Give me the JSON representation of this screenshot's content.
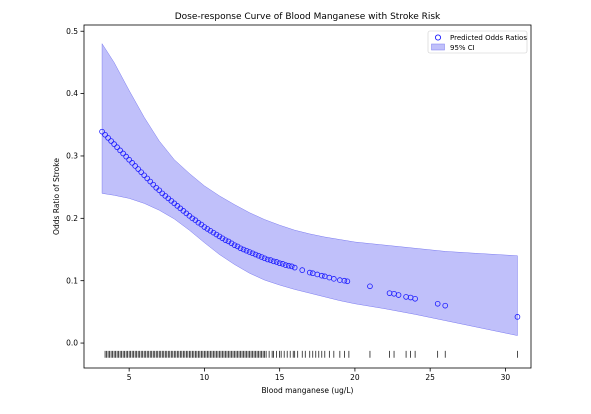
{
  "chart_data": {
    "type": "scatter",
    "title": "Dose-response Curve of Blood Manganese with Stroke Risk",
    "xlabel": "Blood manganese (ug/L)",
    "ylabel": "Odds Ratio of Stroke",
    "xlim": [
      2.0,
      31.7
    ],
    "ylim": [
      -0.04,
      0.51
    ],
    "x_ticks": [
      5,
      10,
      15,
      20,
      25,
      30
    ],
    "y_ticks": [
      0.0,
      0.1,
      0.2,
      0.3,
      0.4,
      0.5
    ],
    "x_tick_labels": [
      "5",
      "10",
      "15",
      "20",
      "25",
      "30"
    ],
    "y_tick_labels": [
      "0.0",
      "0.1",
      "0.2",
      "0.3",
      "0.4",
      "0.5"
    ],
    "grid": false,
    "legend_position": "top-right",
    "legend": {
      "points_label": "Predicted Odds Ratios",
      "band_label": "95% CI"
    },
    "colors": {
      "points": "#1a1aff",
      "band_fill": "#8c8cf5",
      "band_edge": "#7a7af0",
      "rug": "#000000"
    },
    "series": [
      {
        "name": "Predicted Odds Ratios",
        "x": [
          3.2,
          3.4,
          3.6,
          3.8,
          4.0,
          4.2,
          4.4,
          4.6,
          4.8,
          5.0,
          5.2,
          5.4,
          5.6,
          5.8,
          6.0,
          6.2,
          6.4,
          6.6,
          6.8,
          7.0,
          7.2,
          7.4,
          7.6,
          7.8,
          8.0,
          8.2,
          8.4,
          8.6,
          8.8,
          9.0,
          9.2,
          9.4,
          9.6,
          9.8,
          10.0,
          10.2,
          10.4,
          10.6,
          10.8,
          11.0,
          11.2,
          11.4,
          11.6,
          11.8,
          12.0,
          12.2,
          12.4,
          12.6,
          12.8,
          13.0,
          13.2,
          13.4,
          13.6,
          13.8,
          14.0,
          14.2,
          14.4,
          14.6,
          14.8,
          15.0,
          15.2,
          15.4,
          15.6,
          15.8,
          16.0,
          16.5,
          17.0,
          17.2,
          17.5,
          17.8,
          18.0,
          18.3,
          18.6,
          19.0,
          19.3,
          19.5,
          21.0,
          22.3,
          22.6,
          22.9,
          23.4,
          23.7,
          24.0,
          25.5,
          26.0,
          30.8
        ],
        "y": [
          0.339,
          0.334,
          0.329,
          0.324,
          0.319,
          0.314,
          0.309,
          0.304,
          0.299,
          0.294,
          0.289,
          0.284,
          0.279,
          0.274,
          0.269,
          0.264,
          0.259,
          0.254,
          0.249,
          0.245,
          0.24,
          0.236,
          0.232,
          0.228,
          0.224,
          0.22,
          0.216,
          0.212,
          0.208,
          0.204,
          0.2,
          0.197,
          0.193,
          0.19,
          0.186,
          0.183,
          0.18,
          0.177,
          0.174,
          0.171,
          0.168,
          0.165,
          0.163,
          0.16,
          0.157,
          0.155,
          0.152,
          0.15,
          0.148,
          0.146,
          0.144,
          0.142,
          0.14,
          0.138,
          0.136,
          0.134,
          0.133,
          0.131,
          0.13,
          0.128,
          0.127,
          0.125,
          0.124,
          0.123,
          0.121,
          0.117,
          0.113,
          0.112,
          0.11,
          0.108,
          0.107,
          0.105,
          0.103,
          0.101,
          0.1,
          0.099,
          0.091,
          0.08,
          0.079,
          0.077,
          0.074,
          0.073,
          0.071,
          0.063,
          0.06,
          0.042
        ]
      }
    ],
    "ci_band": {
      "name": "95% CI",
      "x": [
        3.2,
        4,
        5,
        6,
        7,
        8,
        9,
        10,
        11,
        12,
        13,
        14,
        15,
        16,
        17,
        18,
        19,
        20,
        22,
        24,
        26,
        28,
        30.8
      ],
      "lower": [
        0.24,
        0.237,
        0.232,
        0.224,
        0.213,
        0.199,
        0.181,
        0.161,
        0.142,
        0.126,
        0.112,
        0.101,
        0.093,
        0.086,
        0.08,
        0.074,
        0.068,
        0.063,
        0.055,
        0.046,
        0.036,
        0.026,
        0.012
      ],
      "upper": [
        0.48,
        0.45,
        0.405,
        0.362,
        0.324,
        0.294,
        0.272,
        0.252,
        0.236,
        0.222,
        0.209,
        0.198,
        0.189,
        0.181,
        0.175,
        0.17,
        0.166,
        0.162,
        0.157,
        0.152,
        0.147,
        0.144,
        0.14
      ]
    },
    "rug": {
      "y": -0.018,
      "x": [
        3.4,
        3.5,
        3.6,
        3.7,
        3.8,
        3.9,
        4.0,
        4.1,
        4.2,
        4.3,
        4.4,
        4.5,
        4.6,
        4.7,
        4.8,
        4.9,
        5.0,
        5.1,
        5.2,
        5.3,
        5.4,
        5.5,
        5.6,
        5.7,
        5.8,
        5.9,
        6.0,
        6.1,
        6.2,
        6.3,
        6.4,
        6.5,
        6.6,
        6.7,
        6.8,
        6.9,
        7.0,
        7.1,
        7.2,
        7.3,
        7.4,
        7.5,
        7.6,
        7.7,
        7.8,
        7.9,
        8.0,
        8.1,
        8.2,
        8.3,
        8.4,
        8.5,
        8.6,
        8.7,
        8.8,
        8.9,
        9.0,
        9.1,
        9.2,
        9.3,
        9.4,
        9.5,
        9.6,
        9.7,
        9.8,
        9.9,
        10.0,
        10.1,
        10.2,
        10.3,
        10.4,
        10.5,
        10.6,
        10.7,
        10.8,
        10.9,
        11.0,
        11.1,
        11.2,
        11.3,
        11.4,
        11.5,
        11.6,
        11.7,
        11.8,
        11.9,
        12.0,
        12.1,
        12.2,
        12.3,
        12.4,
        12.5,
        12.6,
        12.7,
        12.8,
        12.9,
        13.0,
        13.1,
        13.2,
        13.3,
        13.4,
        13.5,
        13.6,
        13.7,
        13.8,
        13.9,
        14.0,
        14.1,
        14.3,
        14.5,
        14.6,
        14.8,
        15.0,
        15.1,
        15.3,
        15.5,
        15.7,
        15.9,
        16.0,
        16.2,
        16.5,
        16.7,
        17.0,
        17.2,
        17.4,
        17.6,
        17.8,
        18.0,
        18.3,
        18.6,
        19.0,
        19.3,
        19.6,
        21.0,
        22.3,
        22.6,
        23.4,
        23.7,
        24.0,
        25.5,
        26.0,
        30.8
      ],
      "height": 0.011
    }
  }
}
